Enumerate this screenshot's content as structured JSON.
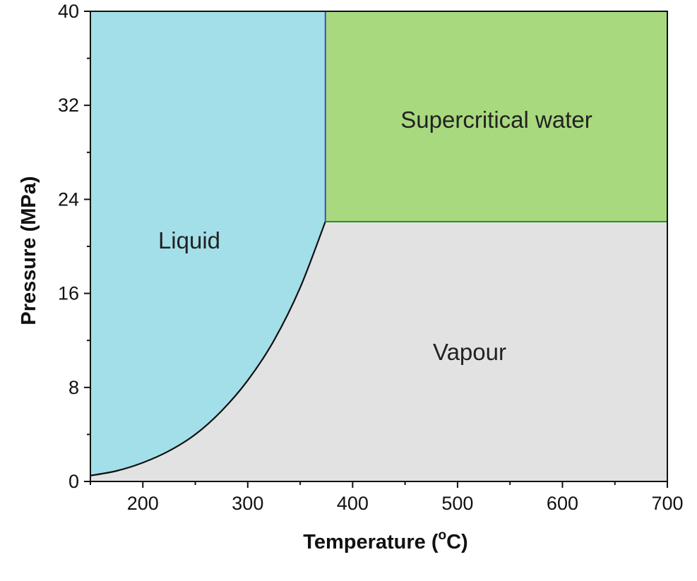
{
  "chart_data": {
    "type": "area",
    "xlabel_main": "Temperature (",
    "xlabel_sup": "o",
    "xlabel_end": "C)",
    "ylabel": "Pressure (MPa)",
    "xlim": [
      150,
      700
    ],
    "ylim": [
      0,
      40
    ],
    "xticks": [
      200,
      300,
      400,
      500,
      600,
      700
    ],
    "yticks": [
      0,
      8,
      16,
      24,
      32,
      40
    ],
    "critical_point": {
      "x": 374,
      "y": 22.1
    },
    "saturation_curve": [
      [
        150,
        0.5
      ],
      [
        175,
        0.9
      ],
      [
        200,
        1.6
      ],
      [
        225,
        2.6
      ],
      [
        250,
        4.0
      ],
      [
        275,
        6.0
      ],
      [
        300,
        8.6
      ],
      [
        325,
        12.0
      ],
      [
        350,
        16.5
      ],
      [
        374,
        22.1
      ]
    ],
    "regions": [
      {
        "name": "Liquid",
        "color": "#a3dfe9"
      },
      {
        "name": "Supercritical water",
        "color": "#a8d97e"
      },
      {
        "name": "Vapour",
        "color": "#e2e2e2"
      }
    ],
    "grid": false
  }
}
